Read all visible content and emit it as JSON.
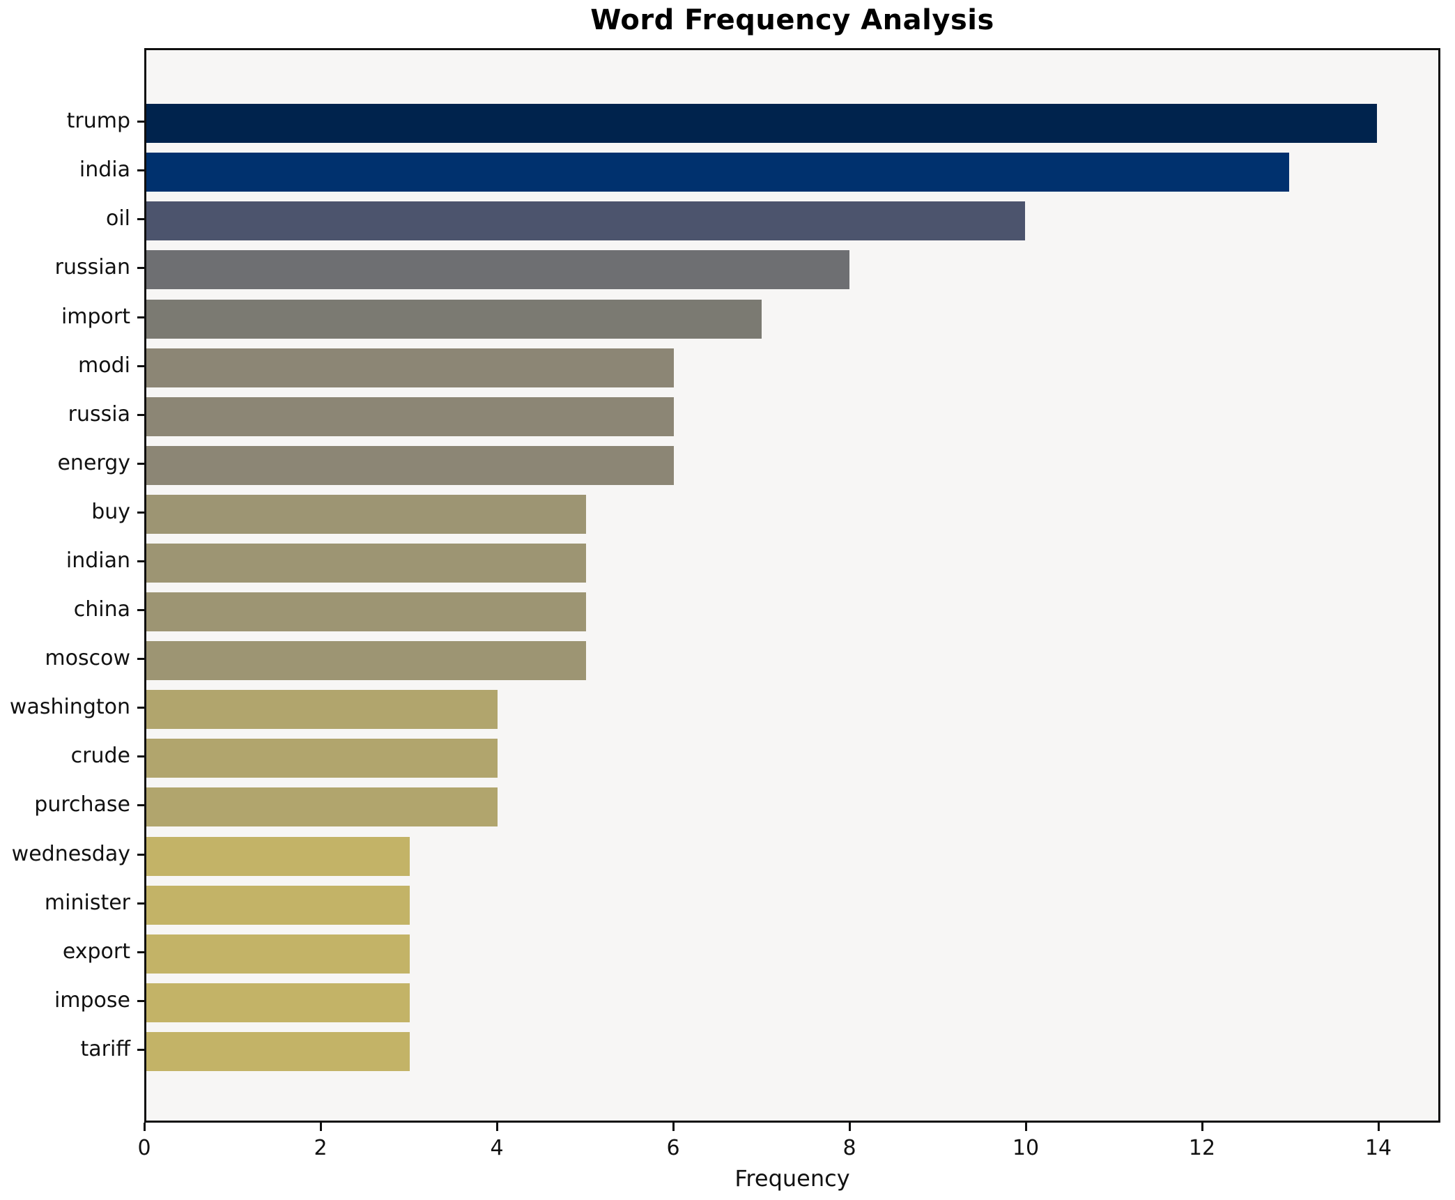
{
  "title": "Word Frequency Analysis",
  "chart_data": {
    "type": "bar",
    "orientation": "horizontal",
    "title": "Word Frequency Analysis",
    "xlabel": "Frequency",
    "ylabel": "",
    "categories": [
      "trump",
      "india",
      "oil",
      "russian",
      "import",
      "modi",
      "russia",
      "energy",
      "buy",
      "indian",
      "china",
      "moscow",
      "washington",
      "crude",
      "purchase",
      "wednesday",
      "minister",
      "export",
      "impose",
      "tariff"
    ],
    "values": [
      14,
      13,
      10,
      8,
      7,
      6,
      6,
      6,
      5,
      5,
      5,
      5,
      4,
      4,
      4,
      3,
      3,
      3,
      3,
      3
    ],
    "bar_colors": [
      "#00234d",
      "#00316e",
      "#4c546d",
      "#6e6f72",
      "#7b7a72",
      "#8c8675",
      "#8c8675",
      "#8c8675",
      "#9d9573",
      "#9d9573",
      "#9d9573",
      "#9d9573",
      "#b1a56d",
      "#b1a56d",
      "#b1a56d",
      "#c3b367",
      "#c3b367",
      "#c3b367",
      "#c3b367",
      "#c3b367"
    ],
    "xticks": [
      0,
      2,
      4,
      6,
      8,
      10,
      12,
      14
    ],
    "xlim": [
      0,
      14.7
    ],
    "grid": false,
    "legend": "none",
    "plot_background": "#f7f6f5",
    "spine_color": "#0f0f0f"
  }
}
